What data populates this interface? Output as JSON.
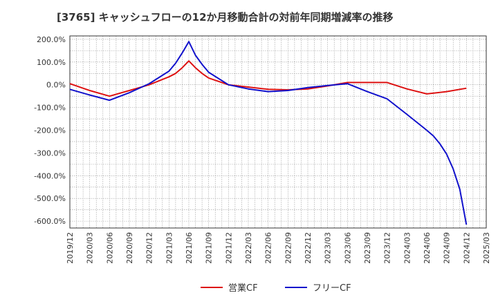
{
  "chart_data": {
    "type": "line",
    "title": "[3765]  キャッシュフローの12か月移動合計の対前年同期増減率の推移",
    "xlabel": "",
    "ylabel": "",
    "x_ticks": [
      "2019/12",
      "2020/03",
      "2020/06",
      "2020/09",
      "2020/12",
      "2021/03",
      "2021/06",
      "2021/09",
      "2021/12",
      "2022/03",
      "2022/06",
      "2022/09",
      "2022/12",
      "2023/03",
      "2023/06",
      "2023/09",
      "2023/12",
      "2024/03",
      "2024/06",
      "2024/09",
      "2024/12",
      "2025/03"
    ],
    "y_ticks": [
      "200.0%",
      "100.0%",
      "0.0%",
      "-100.0%",
      "-200.0%",
      "-300.0%",
      "-400.0%",
      "-500.0%",
      "-600.0%"
    ],
    "ylim": [
      -630,
      215
    ],
    "grid": true,
    "legend_position": "bottom",
    "colors": {
      "series1": "#dd1111",
      "series2": "#1111cc"
    },
    "series": [
      {
        "name": "営業CF",
        "points": [
          [
            "2019/12",
            5
          ],
          [
            "2020/03",
            -25
          ],
          [
            "2020/06",
            -50
          ],
          [
            "2020/09",
            -25
          ],
          [
            "2020/12",
            0
          ],
          [
            "2021/03",
            35
          ],
          [
            "2021/04",
            50
          ],
          [
            "2021/05",
            75
          ],
          [
            "2021/06",
            105
          ],
          [
            "2021/07",
            75
          ],
          [
            "2021/08",
            50
          ],
          [
            "2021/09",
            30
          ],
          [
            "2021/12",
            0
          ],
          [
            "2022/03",
            -10
          ],
          [
            "2022/06",
            -20
          ],
          [
            "2022/09",
            -22
          ],
          [
            "2022/12",
            -18
          ],
          [
            "2023/03",
            -5
          ],
          [
            "2023/06",
            10
          ],
          [
            "2023/09",
            10
          ],
          [
            "2023/12",
            10
          ],
          [
            "2024/03",
            -18
          ],
          [
            "2024/06",
            -40
          ],
          [
            "2024/09",
            -30
          ],
          [
            "2024/12",
            -15
          ]
        ]
      },
      {
        "name": "フリーCF",
        "points": [
          [
            "2019/12",
            -20
          ],
          [
            "2020/03",
            -45
          ],
          [
            "2020/06",
            -68
          ],
          [
            "2020/09",
            -35
          ],
          [
            "2020/12",
            5
          ],
          [
            "2021/03",
            60
          ],
          [
            "2021/04",
            95
          ],
          [
            "2021/05",
            140
          ],
          [
            "2021/06",
            190
          ],
          [
            "2021/07",
            130
          ],
          [
            "2021/08",
            90
          ],
          [
            "2021/09",
            55
          ],
          [
            "2021/12",
            0
          ],
          [
            "2022/03",
            -18
          ],
          [
            "2022/06",
            -30
          ],
          [
            "2022/09",
            -25
          ],
          [
            "2022/12",
            -12
          ],
          [
            "2023/03",
            -3
          ],
          [
            "2023/06",
            5
          ],
          [
            "2023/09",
            -30
          ],
          [
            "2023/12",
            -62
          ],
          [
            "2024/03",
            -130
          ],
          [
            "2024/06",
            -200
          ],
          [
            "2024/07",
            -225
          ],
          [
            "2024/08",
            -260
          ],
          [
            "2024/09",
            -305
          ],
          [
            "2024/10",
            -370
          ],
          [
            "2024/11",
            -460
          ],
          [
            "2024/12",
            -615
          ]
        ]
      }
    ]
  }
}
